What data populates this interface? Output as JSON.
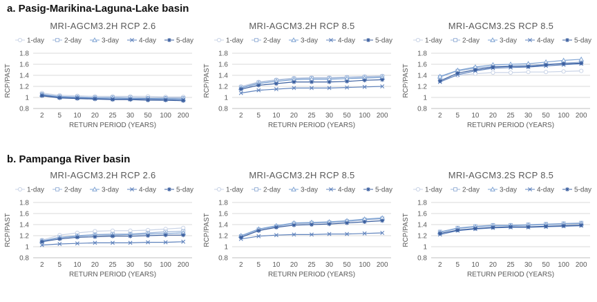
{
  "sections": [
    {
      "label": "a. Pasig-Marikina-Laguna-Lake basin"
    },
    {
      "label": "b. Pampanga River basin"
    }
  ],
  "legend": [
    "1-day",
    "2-day",
    "3-day",
    "4-day",
    "5-day"
  ],
  "series_colors": [
    "#c9d3e6",
    "#9ab3d8",
    "#7ea3d3",
    "#5f83bd",
    "#3b5f9f"
  ],
  "series_markers": [
    "circle",
    "square",
    "triangle",
    "x",
    "star"
  ],
  "chart_data": [
    {
      "type": "line",
      "section": "a",
      "title": "MRI-AGCM3.2H RCP 2.6",
      "categories": [
        "2",
        "5",
        "10",
        "20",
        "25",
        "30",
        "50",
        "100",
        "200"
      ],
      "xlabel": "RETURN PERIOD (YEARS)",
      "ylabel": "RCP/PAST",
      "ylim": [
        0.8,
        1.8
      ],
      "yticks": [
        "0.8",
        "1",
        "1.2",
        "1.4",
        "1.6",
        "1.8"
      ],
      "series": [
        {
          "name": "1-day",
          "values": [
            1.08,
            1.04,
            1.03,
            1.02,
            1.02,
            1.02,
            1.02,
            1.01,
            1.01
          ]
        },
        {
          "name": "2-day",
          "values": [
            1.06,
            1.02,
            1.01,
            1.0,
            1.0,
            1.0,
            0.99,
            0.99,
            0.99
          ]
        },
        {
          "name": "3-day",
          "values": [
            1.05,
            1.01,
            1.0,
            0.99,
            0.99,
            0.98,
            0.98,
            0.98,
            0.97
          ]
        },
        {
          "name": "4-day",
          "values": [
            1.04,
            1.0,
            0.99,
            0.98,
            0.97,
            0.97,
            0.97,
            0.96,
            0.96
          ]
        },
        {
          "name": "5-day",
          "values": [
            1.03,
            0.99,
            0.98,
            0.97,
            0.96,
            0.96,
            0.95,
            0.95,
            0.94
          ]
        }
      ]
    },
    {
      "type": "line",
      "section": "a",
      "title": "MRI-AGCM3.2H RCP 8.5",
      "categories": [
        "2",
        "5",
        "10",
        "20",
        "25",
        "30",
        "50",
        "100",
        "200"
      ],
      "xlabel": "RETURN PERIOD (YEARS)",
      "ylabel": "RCP/PAST",
      "ylim": [
        0.8,
        1.8
      ],
      "yticks": [
        "0.8",
        "1",
        "1.2",
        "1.4",
        "1.6",
        "1.8"
      ],
      "series": [
        {
          "name": "1-day",
          "values": [
            1.2,
            1.28,
            1.32,
            1.35,
            1.36,
            1.36,
            1.37,
            1.38,
            1.39
          ]
        },
        {
          "name": "2-day",
          "values": [
            1.18,
            1.27,
            1.31,
            1.34,
            1.35,
            1.35,
            1.36,
            1.37,
            1.38
          ]
        },
        {
          "name": "3-day",
          "values": [
            1.17,
            1.25,
            1.29,
            1.32,
            1.33,
            1.33,
            1.34,
            1.35,
            1.36
          ]
        },
        {
          "name": "4-day",
          "values": [
            1.08,
            1.13,
            1.15,
            1.17,
            1.17,
            1.17,
            1.18,
            1.19,
            1.2
          ]
        },
        {
          "name": "5-day",
          "values": [
            1.15,
            1.22,
            1.25,
            1.28,
            1.28,
            1.28,
            1.29,
            1.31,
            1.32
          ]
        }
      ]
    },
    {
      "type": "line",
      "section": "a",
      "title": "MRI-AGCM3.2S RCP 8.5",
      "categories": [
        "2",
        "5",
        "10",
        "20",
        "25",
        "30",
        "50",
        "100",
        "200"
      ],
      "xlabel": "RETURN PERIOD (YEARS)",
      "ylabel": "RCP/PAST",
      "ylim": [
        0.8,
        1.8
      ],
      "yticks": [
        "0.8",
        "1",
        "1.2",
        "1.4",
        "1.6",
        "1.8"
      ],
      "series": [
        {
          "name": "1-day",
          "values": [
            1.31,
            1.4,
            1.43,
            1.45,
            1.45,
            1.46,
            1.46,
            1.47,
            1.48
          ]
        },
        {
          "name": "2-day",
          "values": [
            1.37,
            1.48,
            1.53,
            1.56,
            1.57,
            1.58,
            1.6,
            1.62,
            1.64
          ]
        },
        {
          "name": "3-day",
          "values": [
            1.38,
            1.49,
            1.55,
            1.59,
            1.6,
            1.61,
            1.64,
            1.67,
            1.69
          ]
        },
        {
          "name": "4-day",
          "values": [
            1.28,
            1.41,
            1.48,
            1.53,
            1.54,
            1.55,
            1.57,
            1.59,
            1.61
          ]
        },
        {
          "name": "5-day",
          "values": [
            1.3,
            1.44,
            1.5,
            1.55,
            1.56,
            1.56,
            1.59,
            1.61,
            1.62
          ]
        }
      ]
    },
    {
      "type": "line",
      "section": "b",
      "title": "MRI-AGCM3.2H RCP 2.6",
      "categories": [
        "2",
        "5",
        "10",
        "20",
        "25",
        "30",
        "50",
        "100",
        "200"
      ],
      "xlabel": "RETURN PERIOD (YEARS)",
      "ylabel": "RCP/PAST",
      "ylim": [
        0.8,
        1.8
      ],
      "yticks": [
        "0.8",
        "1",
        "1.2",
        "1.4",
        "1.6",
        "1.8"
      ],
      "series": [
        {
          "name": "1-day",
          "values": [
            1.12,
            1.21,
            1.25,
            1.28,
            1.29,
            1.29,
            1.3,
            1.32,
            1.34
          ]
        },
        {
          "name": "2-day",
          "values": [
            1.11,
            1.17,
            1.2,
            1.22,
            1.23,
            1.23,
            1.25,
            1.27,
            1.28
          ]
        },
        {
          "name": "3-day",
          "values": [
            1.1,
            1.16,
            1.19,
            1.21,
            1.21,
            1.22,
            1.23,
            1.24,
            1.25
          ]
        },
        {
          "name": "4-day",
          "values": [
            1.03,
            1.05,
            1.06,
            1.07,
            1.07,
            1.07,
            1.08,
            1.08,
            1.09
          ]
        },
        {
          "name": "5-day",
          "values": [
            1.09,
            1.14,
            1.17,
            1.18,
            1.19,
            1.19,
            1.2,
            1.21,
            1.21
          ]
        }
      ]
    },
    {
      "type": "line",
      "section": "b",
      "title": "MRI-AGCM3.2H RCP 8.5",
      "categories": [
        "2",
        "5",
        "10",
        "20",
        "25",
        "30",
        "50",
        "100",
        "200"
      ],
      "xlabel": "RETURN PERIOD (YEARS)",
      "ylabel": "RCP/PAST",
      "ylim": [
        0.8,
        1.8
      ],
      "yticks": [
        "0.8",
        "1",
        "1.2",
        "1.4",
        "1.6",
        "1.8"
      ],
      "series": [
        {
          "name": "1-day",
          "values": [
            1.18,
            1.29,
            1.36,
            1.41,
            1.42,
            1.43,
            1.45,
            1.48,
            1.5
          ]
        },
        {
          "name": "2-day",
          "values": [
            1.19,
            1.31,
            1.37,
            1.42,
            1.43,
            1.44,
            1.46,
            1.49,
            1.51
          ]
        },
        {
          "name": "3-day",
          "values": [
            1.2,
            1.32,
            1.38,
            1.43,
            1.44,
            1.45,
            1.47,
            1.5,
            1.52
          ]
        },
        {
          "name": "4-day",
          "values": [
            1.14,
            1.19,
            1.21,
            1.22,
            1.22,
            1.23,
            1.23,
            1.24,
            1.25
          ]
        },
        {
          "name": "5-day",
          "values": [
            1.17,
            1.29,
            1.35,
            1.39,
            1.4,
            1.41,
            1.43,
            1.45,
            1.47
          ]
        }
      ]
    },
    {
      "type": "line",
      "section": "b",
      "title": "MRI-AGCM3.2S RCP 8.5",
      "categories": [
        "2",
        "5",
        "10",
        "20",
        "25",
        "30",
        "50",
        "100",
        "200"
      ],
      "xlabel": "RETURN PERIOD (YEARS)",
      "ylabel": "RCP/PAST",
      "ylim": [
        0.8,
        1.8
      ],
      "yticks": [
        "0.8",
        "1",
        "1.2",
        "1.4",
        "1.6",
        "1.8"
      ],
      "series": [
        {
          "name": "1-day",
          "values": [
            1.26,
            1.33,
            1.36,
            1.38,
            1.39,
            1.39,
            1.4,
            1.41,
            1.42
          ]
        },
        {
          "name": "2-day",
          "values": [
            1.27,
            1.34,
            1.37,
            1.39,
            1.39,
            1.4,
            1.41,
            1.42,
            1.43
          ]
        },
        {
          "name": "3-day",
          "values": [
            1.26,
            1.33,
            1.36,
            1.38,
            1.38,
            1.39,
            1.4,
            1.41,
            1.42
          ]
        },
        {
          "name": "4-day",
          "values": [
            1.22,
            1.29,
            1.32,
            1.34,
            1.35,
            1.35,
            1.36,
            1.37,
            1.38
          ]
        },
        {
          "name": "5-day",
          "values": [
            1.24,
            1.3,
            1.33,
            1.35,
            1.36,
            1.36,
            1.37,
            1.38,
            1.39
          ]
        }
      ]
    }
  ]
}
